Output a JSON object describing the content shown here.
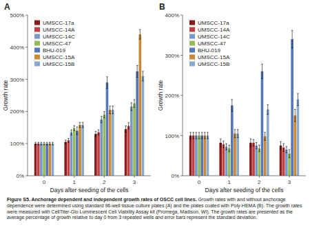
{
  "chart_data": [
    {
      "type": "bar",
      "title": "A",
      "x_label": "Days after seeding of the cells",
      "y_label": "Growth rate",
      "x": [
        0,
        1,
        2,
        3
      ],
      "xlim": [
        -0.55,
        3.55
      ],
      "xticks": [
        0,
        1,
        2,
        3
      ],
      "ylim": [
        0,
        500
      ],
      "yticks": [
        {
          "value": 0,
          "label": "0%"
        },
        {
          "value": 100,
          "label": "100%"
        },
        {
          "value": 200,
          "label": "200%"
        },
        {
          "value": 300,
          "label": "300%"
        },
        {
          "value": 400,
          "label": "400%"
        },
        {
          "value": 500,
          "label": "500%"
        }
      ],
      "grid": false,
      "legend": "upper left",
      "series": [
        {
          "name": "UMSCC-17a",
          "color": "#8B1A1A",
          "values": [
            100,
            105,
            130,
            145
          ],
          "errors": [
            4,
            6,
            8,
            10
          ]
        },
        {
          "name": "UMSCC-14A",
          "color": "#C44040",
          "values": [
            100,
            110,
            135,
            155
          ],
          "errors": [
            4,
            6,
            8,
            10
          ]
        },
        {
          "name": "UMSCC-14C",
          "color": "#7799CC",
          "values": [
            100,
            135,
            175,
            215
          ],
          "errors": [
            4,
            8,
            10,
            12
          ]
        },
        {
          "name": "UMSCC-47",
          "color": "#99BB55",
          "values": [
            100,
            148,
            190,
            225
          ],
          "errors": [
            4,
            8,
            10,
            12
          ]
        },
        {
          "name": "BHU-019",
          "color": "#5577BB",
          "values": [
            100,
            140,
            290,
            325
          ],
          "errors": [
            4,
            12,
            18,
            18
          ]
        },
        {
          "name": "UMSCC-15A",
          "color": "#CC8833",
          "values": [
            100,
            158,
            205,
            440
          ],
          "errors": [
            4,
            8,
            12,
            15
          ]
        },
        {
          "name": "UMSCC-15B",
          "color": "#88AACC",
          "values": [
            100,
            158,
            205,
            310
          ],
          "errors": [
            4,
            8,
            12,
            15
          ]
        }
      ]
    },
    {
      "type": "bar",
      "title": "B",
      "x_label": "Days after seeding of the cells",
      "y_label": "Growth rate",
      "x": [
        0,
        1,
        2,
        3
      ],
      "xlim": [
        -0.55,
        3.55
      ],
      "xticks": [
        0,
        1,
        2,
        3
      ],
      "ylim": [
        0,
        400
      ],
      "yticks": [
        {
          "value": 0,
          "label": "0%"
        },
        {
          "value": 100,
          "label": "100%"
        },
        {
          "value": 200,
          "label": "200%"
        },
        {
          "value": 300,
          "label": "300%"
        },
        {
          "value": 400,
          "label": "400%"
        }
      ],
      "grid": false,
      "legend": "upper left",
      "series": [
        {
          "name": "UMSCC-17a",
          "color": "#8B1A1A",
          "values": [
            100,
            82,
            82,
            75
          ],
          "errors": [
            8,
            10,
            10,
            10
          ]
        },
        {
          "name": "UMSCC-14A",
          "color": "#C44040",
          "values": [
            100,
            78,
            82,
            70
          ],
          "errors": [
            8,
            8,
            8,
            10
          ]
        },
        {
          "name": "UMSCC-14C",
          "color": "#7799CC",
          "values": [
            100,
            72,
            75,
            65
          ],
          "errors": [
            8,
            8,
            8,
            8
          ]
        },
        {
          "name": "UMSCC-47",
          "color": "#99BB55",
          "values": [
            100,
            68,
            68,
            55
          ],
          "errors": [
            8,
            8,
            8,
            10
          ]
        },
        {
          "name": "BHU-019",
          "color": "#5577BB",
          "values": [
            100,
            175,
            260,
            340
          ],
          "errors": [
            8,
            15,
            18,
            22
          ]
        },
        {
          "name": "UMSCC-15A",
          "color": "#CC8833",
          "values": [
            100,
            105,
            98,
            150
          ],
          "errors": [
            8,
            10,
            10,
            15
          ]
        },
        {
          "name": "UMSCC-15B",
          "color": "#88AACC",
          "values": [
            100,
            105,
            165,
            190
          ],
          "errors": [
            8,
            10,
            12,
            15
          ]
        }
      ]
    }
  ],
  "caption": {
    "bold": "Figure S5. Anchorage dependent and independent growth rates of OSCC cell lines.",
    "text": " Growth rates with and without anchorage dependence were determined using standard 96-well tissue culture plates (A) and the plates coated with Poly-HEMA (B). The growth rates were measured with CellTiter-Glo Luminescent Cell Viability Assay kit (Promega, Madison, WI). The growth rates are presented as the average percentage of growth relative to day 0 from 3 repeated wells and error bars represent the standard deviation."
  }
}
